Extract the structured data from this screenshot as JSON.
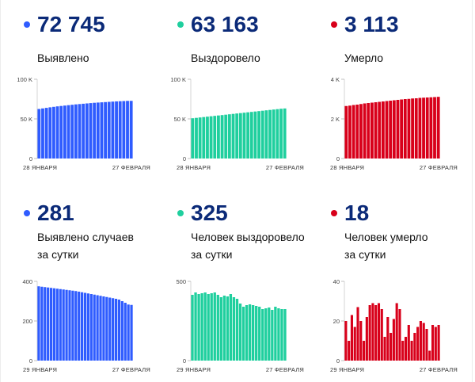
{
  "stats": [
    {
      "value": "72 745",
      "label1": "Выявлено",
      "label2": "",
      "color": "#2f5cff"
    },
    {
      "value": "63 163",
      "label1": "Выздоровело",
      "label2": "",
      "color": "#1fcf9e"
    },
    {
      "value": "3 113",
      "label1": "Умерло",
      "label2": "",
      "color": "#d8001a"
    },
    {
      "value": "281",
      "label1": "Выявлено случаев",
      "label2": "за сутки",
      "color": "#2f5cff"
    },
    {
      "value": "325",
      "label1": "Человек выздоровело",
      "label2": "за сутки",
      "color": "#1fcf9e"
    },
    {
      "value": "18",
      "label1": "Человек умерло",
      "label2": "за сутки",
      "color": "#d8001a"
    }
  ],
  "chart_data": [
    {
      "type": "bar",
      "color": "#2f5cff",
      "ylim": [
        0,
        100000
      ],
      "yticks": [
        0,
        50000,
        100000
      ],
      "ytick_labels": [
        "0",
        "50 K",
        "100 K"
      ],
      "xlabel_start": "28 ЯНВАРЯ",
      "xlabel_end": "27 ФЕВРАЛЯ",
      "values": [
        62500,
        63200,
        63900,
        64600,
        65200,
        65800,
        66300,
        66800,
        67300,
        67800,
        68300,
        68700,
        69100,
        69500,
        69900,
        70300,
        70600,
        70900,
        71200,
        71500,
        71800,
        72100,
        72300,
        72500,
        72700,
        72745
      ]
    },
    {
      "type": "bar",
      "color": "#1fcf9e",
      "ylim": [
        0,
        100000
      ],
      "yticks": [
        0,
        50000,
        100000
      ],
      "ytick_labels": [
        "0",
        "50 K",
        "100 K"
      ],
      "xlabel_start": "28 ЯНВАРЯ",
      "xlabel_end": "27 ФЕВРАЛЯ",
      "values": [
        50800,
        51300,
        51800,
        52300,
        52800,
        53300,
        53800,
        54300,
        54800,
        55300,
        55800,
        56300,
        56800,
        57300,
        57800,
        58300,
        58800,
        59300,
        59800,
        60300,
        60800,
        61300,
        61800,
        62300,
        62800,
        63163
      ]
    },
    {
      "type": "bar",
      "color": "#d8001a",
      "ylim": [
        0,
        4000
      ],
      "yticks": [
        0,
        2000,
        4000
      ],
      "ytick_labels": [
        "0",
        "2 K",
        "4 K"
      ],
      "xlabel_start": "28 ЯНВАРЯ",
      "xlabel_end": "27 ФЕВРАЛЯ",
      "values": [
        2650,
        2670,
        2700,
        2720,
        2750,
        2780,
        2800,
        2820,
        2840,
        2860,
        2880,
        2900,
        2920,
        2940,
        2960,
        2980,
        3000,
        3010,
        3030,
        3040,
        3060,
        3070,
        3080,
        3090,
        3100,
        3113
      ]
    },
    {
      "type": "bar",
      "color": "#2f5cff",
      "ylim": [
        0,
        400
      ],
      "yticks": [
        0,
        200,
        400
      ],
      "ytick_labels": [
        "0",
        "200",
        "400"
      ],
      "xlabel_start": "29 ЯНВАРЯ",
      "xlabel_end": "27 ФЕВРАЛЯ",
      "values": [
        375,
        373,
        371,
        369,
        367,
        365,
        363,
        361,
        359,
        357,
        355,
        353,
        351,
        348,
        345,
        342,
        339,
        336,
        333,
        330,
        327,
        324,
        321,
        318,
        315,
        312,
        308,
        300,
        292,
        283,
        281
      ]
    },
    {
      "type": "bar",
      "color": "#1fcf9e",
      "ylim": [
        0,
        500
      ],
      "yticks": [
        0,
        500
      ],
      "ytick_labels": [
        "0",
        "500"
      ],
      "xlabel_start": "29 ЯНВАРЯ",
      "xlabel_end": "27 ФЕВРАЛЯ",
      "values": [
        415,
        430,
        420,
        425,
        430,
        420,
        425,
        430,
        415,
        400,
        410,
        405,
        420,
        400,
        390,
        360,
        340,
        350,
        355,
        350,
        345,
        340,
        325,
        330,
        335,
        320,
        340,
        330,
        325,
        325
      ]
    },
    {
      "type": "bar",
      "color": "#d8001a",
      "ylim": [
        0,
        40
      ],
      "yticks": [
        0,
        20,
        40
      ],
      "ytick_labels": [
        "0",
        "20",
        "40"
      ],
      "xlabel_start": "29 ЯНВАРЯ",
      "xlabel_end": "27 ФЕВРАЛЯ",
      "values": [
        20,
        10,
        23,
        17,
        27,
        20,
        10,
        22,
        28,
        29,
        28,
        29,
        26,
        12,
        22,
        14,
        21,
        29,
        26,
        10,
        12,
        18,
        10,
        14,
        17,
        20,
        19,
        16,
        5,
        18,
        17,
        18
      ]
    }
  ]
}
